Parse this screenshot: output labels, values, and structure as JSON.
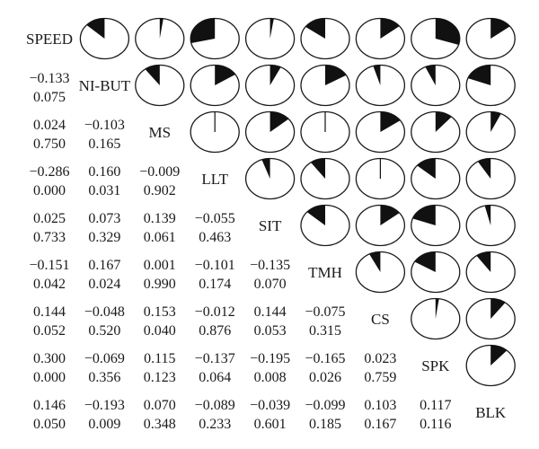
{
  "chart_data": {
    "type": "corrgram",
    "variables": [
      "SPEED",
      "NI-BUT",
      "MS",
      "LLT",
      "SIT",
      "TMH",
      "CS",
      "SPK",
      "BLK"
    ],
    "correlations": [
      {
        "row": "NI-BUT",
        "col": "SPEED",
        "r": "−0.133",
        "p": "0.075",
        "value": -0.133
      },
      {
        "row": "MS",
        "col": "SPEED",
        "r": "0.024",
        "p": "0.750",
        "value": 0.024
      },
      {
        "row": "MS",
        "col": "NI-BUT",
        "r": "−0.103",
        "p": "0.165",
        "value": -0.103
      },
      {
        "row": "LLT",
        "col": "SPEED",
        "r": "−0.286",
        "p": "0.000",
        "value": -0.286
      },
      {
        "row": "LLT",
        "col": "NI-BUT",
        "r": "0.160",
        "p": "0.031",
        "value": 0.16
      },
      {
        "row": "LLT",
        "col": "MS",
        "r": "−0.009",
        "p": "0.902",
        "value": -0.009
      },
      {
        "row": "SIT",
        "col": "SPEED",
        "r": "0.025",
        "p": "0.733",
        "value": 0.025
      },
      {
        "row": "SIT",
        "col": "NI-BUT",
        "r": "0.073",
        "p": "0.329",
        "value": 0.073
      },
      {
        "row": "SIT",
        "col": "MS",
        "r": "0.139",
        "p": "0.061",
        "value": 0.139
      },
      {
        "row": "SIT",
        "col": "LLT",
        "r": "−0.055",
        "p": "0.463",
        "value": -0.055
      },
      {
        "row": "TMH",
        "col": "SPEED",
        "r": "−0.151",
        "p": "0.042",
        "value": -0.151
      },
      {
        "row": "TMH",
        "col": "NI-BUT",
        "r": "0.167",
        "p": "0.024",
        "value": 0.167
      },
      {
        "row": "TMH",
        "col": "MS",
        "r": "0.001",
        "p": "0.990",
        "value": 0.001
      },
      {
        "row": "TMH",
        "col": "LLT",
        "r": "−0.101",
        "p": "0.174",
        "value": -0.101
      },
      {
        "row": "TMH",
        "col": "SIT",
        "r": "−0.135",
        "p": "0.070",
        "value": -0.135
      },
      {
        "row": "CS",
        "col": "SPEED",
        "r": "0.144",
        "p": "0.052",
        "value": 0.144
      },
      {
        "row": "CS",
        "col": "NI-BUT",
        "r": "−0.048",
        "p": "0.520",
        "value": -0.048
      },
      {
        "row": "CS",
        "col": "MS",
        "r": "0.153",
        "p": "0.040",
        "value": 0.153
      },
      {
        "row": "CS",
        "col": "LLT",
        "r": "−0.012",
        "p": "0.876",
        "value": -0.012
      },
      {
        "row": "CS",
        "col": "SIT",
        "r": "0.144",
        "p": "0.053",
        "value": 0.144
      },
      {
        "row": "CS",
        "col": "TMH",
        "r": "−0.075",
        "p": "0.315",
        "value": -0.075
      },
      {
        "row": "SPK",
        "col": "SPEED",
        "r": "0.300",
        "p": "0.000",
        "value": 0.3
      },
      {
        "row": "SPK",
        "col": "NI-BUT",
        "r": "−0.069",
        "p": "0.356",
        "value": -0.069
      },
      {
        "row": "SPK",
        "col": "MS",
        "r": "0.115",
        "p": "0.123",
        "value": 0.115
      },
      {
        "row": "SPK",
        "col": "LLT",
        "r": "−0.137",
        "p": "0.064",
        "value": -0.137
      },
      {
        "row": "SPK",
        "col": "SIT",
        "r": "−0.195",
        "p": "0.008",
        "value": -0.195
      },
      {
        "row": "SPK",
        "col": "TMH",
        "r": "−0.165",
        "p": "0.026",
        "value": -0.165
      },
      {
        "row": "SPK",
        "col": "CS",
        "r": "0.023",
        "p": "0.759",
        "value": 0.023
      },
      {
        "row": "BLK",
        "col": "SPEED",
        "r": "0.146",
        "p": "0.050",
        "value": 0.146
      },
      {
        "row": "BLK",
        "col": "NI-BUT",
        "r": "−0.193",
        "p": "0.009",
        "value": -0.193
      },
      {
        "row": "BLK",
        "col": "MS",
        "r": "0.070",
        "p": "0.348",
        "value": 0.07
      },
      {
        "row": "BLK",
        "col": "LLT",
        "r": "−0.089",
        "p": "0.233",
        "value": -0.089
      },
      {
        "row": "BLK",
        "col": "SIT",
        "r": "−0.039",
        "p": "0.601",
        "value": -0.039
      },
      {
        "row": "BLK",
        "col": "TMH",
        "r": "−0.099",
        "p": "0.185",
        "value": -0.099
      },
      {
        "row": "BLK",
        "col": "CS",
        "r": "0.103",
        "p": "0.167",
        "value": 0.103
      },
      {
        "row": "BLK",
        "col": "SPK",
        "r": "0.117",
        "p": "0.116",
        "value": 0.117
      }
    ],
    "upper_panel": "pie",
    "lower_panel": "coefficient and p-value",
    "grid": false,
    "legend": "none"
  },
  "colors": {
    "wedge": "#111111",
    "pie_outline": "#1a1a1a",
    "text": "#1a1a1a",
    "background": "#ffffff"
  }
}
